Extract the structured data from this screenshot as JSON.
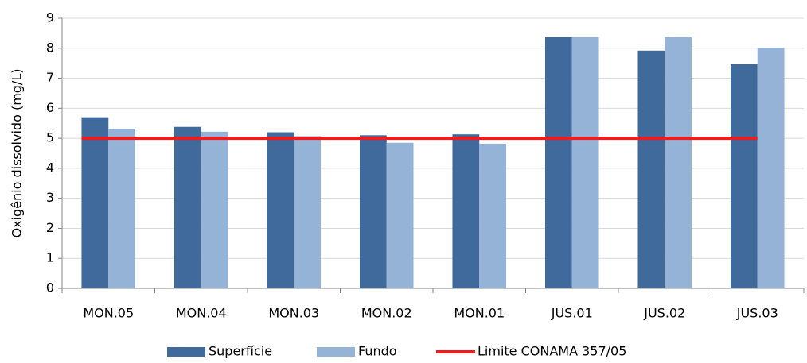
{
  "chart_data": {
    "type": "bar",
    "ylabel": "Oxigênio dissolvido (mg/L)",
    "categories": [
      "MON.05",
      "MON.04",
      "MON.03",
      "MON.02",
      "MON.01",
      "JUS.01",
      "JUS.02",
      "JUS.03"
    ],
    "series": [
      {
        "name": "Superfície",
        "color": "#40699c",
        "values": [
          5.7,
          5.38,
          5.2,
          5.1,
          5.13,
          8.37,
          7.92,
          7.47
        ]
      },
      {
        "name": "Fundo",
        "color": "#95b3d7",
        "values": [
          5.32,
          5.22,
          5.07,
          4.85,
          4.82,
          8.37,
          8.37,
          8.02
        ]
      },
      {
        "name": "Limite CONAMA 357/05",
        "color": "#ee1c1c",
        "type": "line",
        "values": [
          5,
          5,
          5,
          5,
          5,
          5,
          5,
          5
        ]
      }
    ],
    "ylim": [
      0,
      9
    ],
    "yticks": [
      0,
      1,
      2,
      3,
      4,
      5,
      6,
      7,
      8,
      9
    ],
    "grid": true,
    "legend": "bottom"
  }
}
